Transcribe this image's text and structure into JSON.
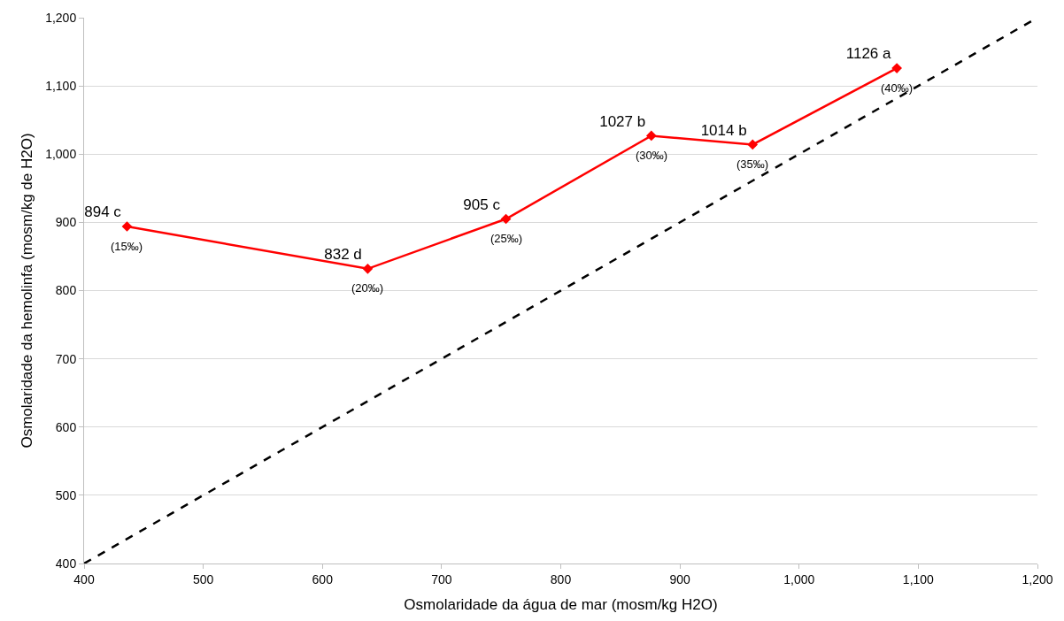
{
  "chart_data": {
    "type": "line",
    "xlabel": "Osmolaridade da água de mar (mosm/kg H2O)",
    "ylabel": "Osmolaridade da hemolinfa (mosm/kg de H2O)",
    "x": [
      436,
      638,
      754,
      876,
      961,
      1082
    ],
    "series": [
      {
        "color": "#ff0000",
        "values": [
          894,
          832,
          905,
          1027,
          1014,
          1126
        ],
        "value_labels": [
          "894 c",
          "832 d",
          "905 c",
          "1027 b",
          "1014 b",
          "1126 a"
        ],
        "marker": "diamond",
        "line_style": "solid"
      },
      {
        "color": "#000000",
        "x": [
          400,
          1200
        ],
        "values": [
          400,
          1200
        ],
        "marker": "none",
        "line_style": "dashed"
      }
    ],
    "annotations": [
      {
        "text": "(15‰)",
        "x": 436,
        "y": 894
      },
      {
        "text": "(20‰)",
        "x": 638,
        "y": 832
      },
      {
        "text": "(25‰)",
        "x": 754,
        "y": 905
      },
      {
        "text": "(30‰)",
        "x": 876,
        "y": 1027
      },
      {
        "text": "(35‰)",
        "x": 961,
        "y": 1014
      },
      {
        "text": "(40‰)",
        "x": 1082,
        "y": 1126
      }
    ],
    "xlim": [
      400,
      1200
    ],
    "ylim": [
      400,
      1200
    ],
    "xticks": [
      400,
      500,
      600,
      700,
      800,
      900,
      {
        "value": 1000,
        "label": "1,000"
      },
      {
        "value": 1100,
        "label": "1,100"
      },
      {
        "value": 1200,
        "label": "1,200"
      }
    ],
    "yticks": [
      400,
      500,
      600,
      700,
      800,
      900,
      {
        "value": 1000,
        "label": "1,000"
      },
      {
        "value": 1100,
        "label": "1,100"
      },
      {
        "value": 1200,
        "label": "1,200"
      }
    ],
    "grid": "y"
  }
}
